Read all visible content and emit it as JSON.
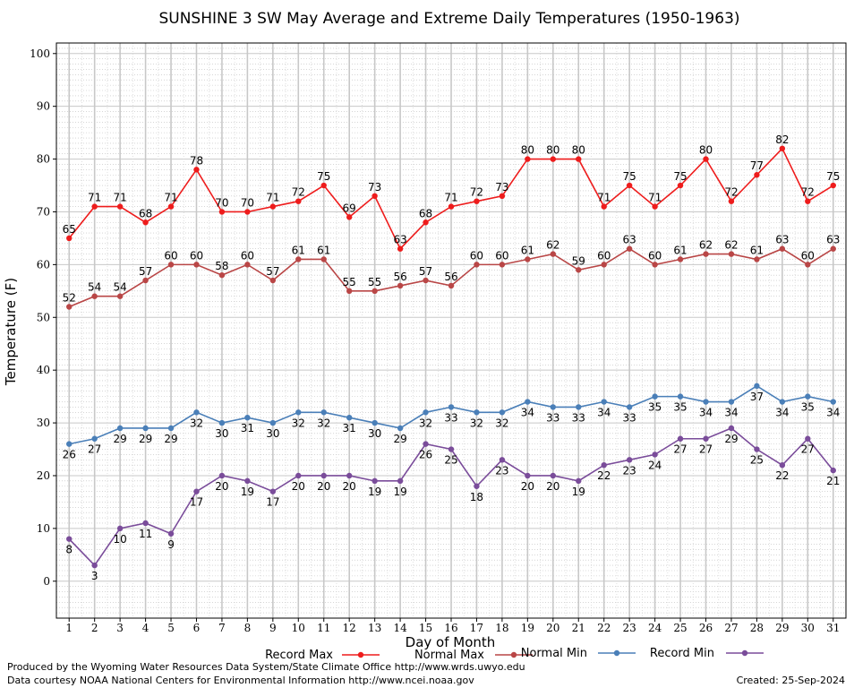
{
  "chart_data": {
    "type": "line",
    "title": "SUNSHINE 3 SW May Average and Extreme Daily Temperatures (1950-1963)",
    "xlabel": "Day of Month",
    "ylabel": "Temperature (F)",
    "x": [
      1,
      2,
      3,
      4,
      5,
      6,
      7,
      8,
      9,
      10,
      11,
      12,
      13,
      14,
      15,
      16,
      17,
      18,
      19,
      20,
      21,
      22,
      23,
      24,
      25,
      26,
      27,
      28,
      29,
      30,
      31
    ],
    "ylim": [
      -7,
      102
    ],
    "yticks": [
      0,
      10,
      20,
      30,
      40,
      50,
      60,
      70,
      80,
      90,
      100
    ],
    "grid": true,
    "legend_position": "bottom",
    "series": [
      {
        "name": "Record Max",
        "color": "#ee1c1c",
        "label_pos": "above",
        "values": [
          65,
          71,
          71,
          68,
          71,
          78,
          70,
          70,
          71,
          72,
          75,
          69,
          73,
          63,
          68,
          71,
          72,
          73,
          80,
          80,
          80,
          71,
          75,
          71,
          75,
          80,
          72,
          77,
          82,
          72,
          75
        ]
      },
      {
        "name": "Normal Max",
        "color": "#b94646",
        "label_pos": "above",
        "values": [
          52,
          54,
          54,
          57,
          60,
          60,
          58,
          60,
          57,
          61,
          61,
          55,
          55,
          56,
          57,
          56,
          60,
          60,
          61,
          62,
          59,
          60,
          63,
          60,
          61,
          62,
          62,
          61,
          63,
          60,
          63
        ]
      },
      {
        "name": "Normal Min",
        "color": "#4a7fb8",
        "label_pos": "below",
        "values": [
          26,
          27,
          29,
          29,
          29,
          32,
          30,
          31,
          30,
          32,
          32,
          31,
          30,
          29,
          32,
          33,
          32,
          32,
          34,
          33,
          33,
          34,
          33,
          35,
          35,
          34,
          34,
          37,
          34,
          35,
          34
        ]
      },
      {
        "name": "Record Min",
        "color": "#7a4c9a",
        "label_pos": "below",
        "values": [
          8,
          3,
          10,
          11,
          9,
          17,
          20,
          19,
          17,
          20,
          20,
          20,
          19,
          19,
          26,
          25,
          18,
          23,
          20,
          20,
          19,
          22,
          23,
          24,
          27,
          27,
          29,
          25,
          22,
          27,
          21
        ]
      }
    ]
  },
  "footer": {
    "produced_by": "Produced by the Wyoming Water Resources Data System/State Climate Office http://www.wrds.uwyo.edu",
    "courtesy": "Data courtesy NOAA National Centers for Environmental Information http://www.ncei.noaa.gov",
    "created": "Created:  25-Sep-2024"
  }
}
